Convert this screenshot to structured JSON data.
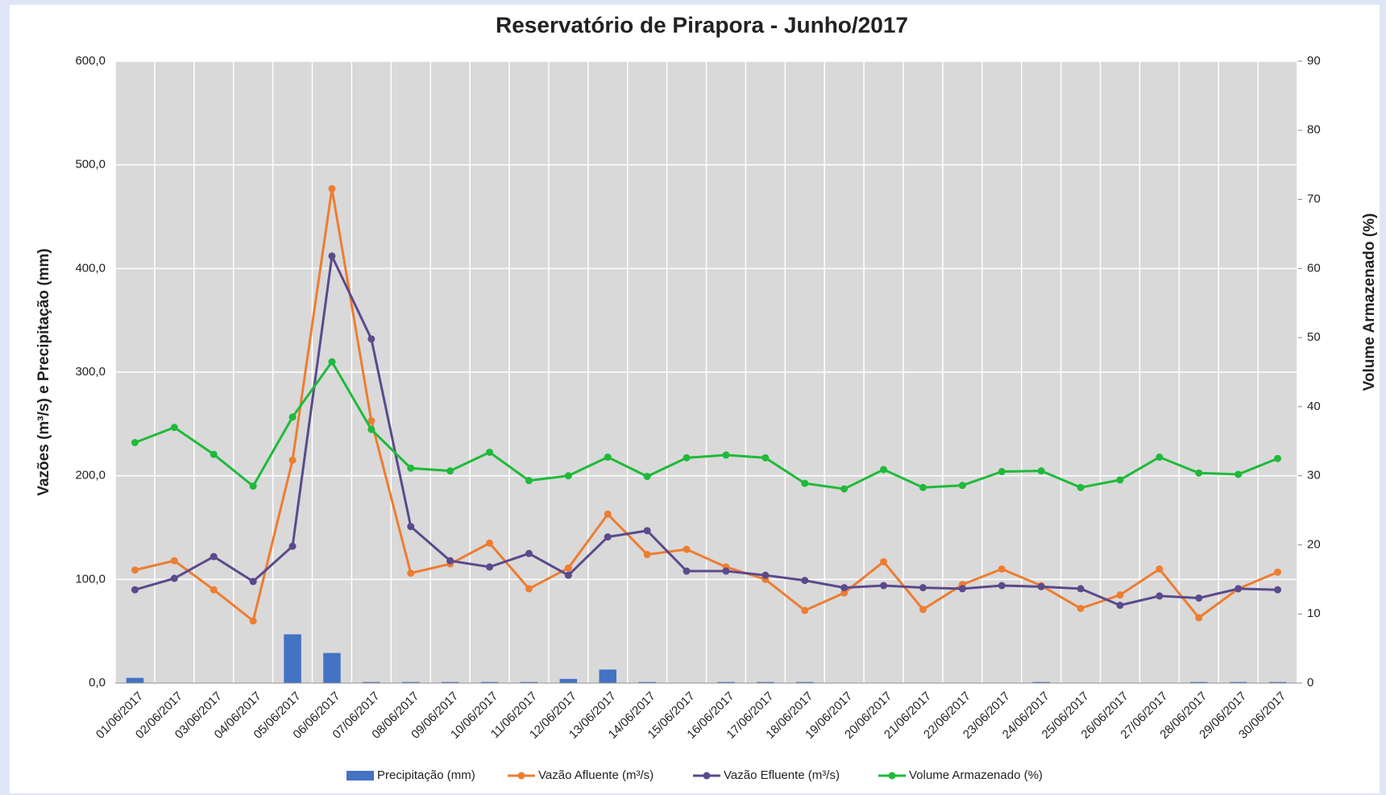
{
  "chart_data": {
    "type": "combo",
    "title": "Reservatório de Pirapora - Junho/2017",
    "y_label": "Vazões (m³/s) e Precipitação (mm)",
    "y2_label": "Volume Armazenado (%)",
    "categories": [
      "01/06/2017",
      "02/06/2017",
      "03/06/2017",
      "04/06/2017",
      "05/06/2017",
      "06/06/2017",
      "07/06/2017",
      "08/06/2017",
      "09/06/2017",
      "10/06/2017",
      "11/06/2017",
      "12/06/2017",
      "13/06/2017",
      "14/06/2017",
      "15/06/2017",
      "16/06/2017",
      "17/06/2017",
      "18/06/2017",
      "19/06/2017",
      "20/06/2017",
      "21/06/2017",
      "22/06/2017",
      "23/06/2017",
      "24/06/2017",
      "25/06/2017",
      "26/06/2017",
      "27/06/2017",
      "28/06/2017",
      "29/06/2017",
      "30/06/2017"
    ],
    "series": [
      {
        "name": "Precipitação (mm)",
        "type": "bar",
        "color": "#4472c4",
        "values": [
          5,
          0,
          0,
          0,
          47,
          29,
          1,
          1,
          1,
          1,
          1,
          4,
          13,
          1,
          0,
          1,
          1,
          1,
          0,
          0,
          0,
          0,
          0,
          1,
          0,
          0,
          0,
          1,
          1,
          1
        ]
      },
      {
        "name": "Vazão Afluente (m³/s)",
        "type": "line",
        "color": "#ed7d31",
        "values": [
          109,
          118,
          90,
          60,
          215,
          477,
          253,
          106,
          115,
          135,
          91,
          111,
          163,
          124,
          129,
          112,
          100,
          70,
          87,
          117,
          71,
          95,
          110,
          94,
          72,
          85,
          110,
          63,
          91,
          107
        ]
      },
      {
        "name": "Vazão Efluente (m³/s)",
        "type": "line",
        "color": "#5b4a8c",
        "values": [
          90,
          101,
          122,
          98,
          132,
          412,
          332,
          151,
          118,
          112,
          125,
          104,
          141,
          147,
          108,
          108,
          104,
          99,
          92,
          94,
          92,
          91,
          94,
          93,
          91,
          75,
          84,
          82,
          91,
          90
        ]
      },
      {
        "name": "Volume Armazenado (%)",
        "type": "line",
        "color": "#1fba3a",
        "axis": "y2",
        "values": [
          34.8,
          37.0,
          33.1,
          28.5,
          38.5,
          46.5,
          36.7,
          31.1,
          30.7,
          33.4,
          29.3,
          30.0,
          32.7,
          29.9,
          32.6,
          33.0,
          32.6,
          28.9,
          28.1,
          30.9,
          28.3,
          28.6,
          30.6,
          30.7,
          28.3,
          29.4,
          32.7,
          30.4,
          30.2,
          32.5
        ]
      }
    ],
    "ylim": [
      0,
      600
    ],
    "yticks": [
      {
        "value": 0,
        "label": "0,0"
      },
      {
        "value": 100,
        "label": "100,0"
      },
      {
        "value": 200,
        "label": "200,0"
      },
      {
        "value": 300,
        "label": "300,0"
      },
      {
        "value": 400,
        "label": "400,0"
      },
      {
        "value": 500,
        "label": "500,0"
      },
      {
        "value": 600,
        "label": "600,0"
      }
    ],
    "y2lim": [
      0,
      90
    ],
    "y2ticks": [
      0,
      10,
      20,
      30,
      40,
      50,
      60,
      70,
      80,
      90
    ],
    "grid": true,
    "legend": "bottom"
  }
}
